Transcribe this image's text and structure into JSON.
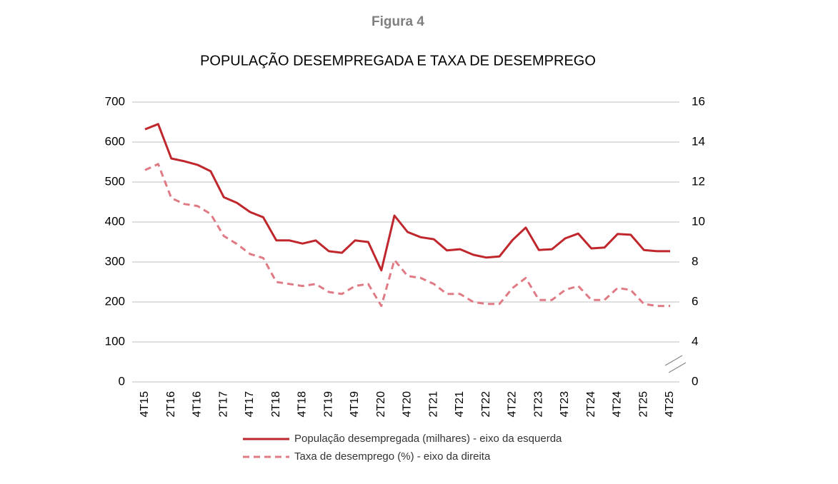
{
  "chart_data": {
    "type": "line",
    "supertitle": "Figura 4",
    "title": "POPULAÇÃO DESEMPREGADA E TAXA DE DESEMPREGO",
    "categories": [
      "4T15",
      null,
      "2T16",
      null,
      "4T16",
      null,
      "2T17",
      null,
      "4T17",
      null,
      "2T18",
      null,
      "4T18",
      null,
      "2T19",
      null,
      "4T19",
      null,
      "2T20",
      null,
      "4T20",
      null,
      "2T21",
      null,
      "4T21",
      null,
      "2T22",
      null,
      "4T22",
      null,
      "2T23",
      null,
      "4T23",
      null,
      "2T24",
      null,
      "4T24",
      null,
      "2T25",
      null,
      "4T25"
    ],
    "series": [
      {
        "name": "População desempregada (milhares) - eixo da esquerda",
        "color": "#c0272d",
        "dash": false,
        "values": [
          632,
          645,
          559,
          552,
          543,
          527,
          462,
          448,
          425,
          412,
          354,
          354,
          346,
          354,
          327,
          323,
          354,
          350,
          279,
          416,
          375,
          362,
          357,
          329,
          332,
          318,
          311,
          314,
          355,
          386,
          330,
          332,
          359,
          371,
          334,
          336,
          370,
          368,
          330,
          327,
          327
        ]
      },
      {
        "name": "Taxa de desemprego (%) - eixo da direita",
        "color": "#e07b85",
        "dash": true,
        "axis": "y2",
        "values": [
          12.6,
          12.9,
          11.2,
          10.9,
          10.8,
          10.4,
          9.3,
          8.9,
          8.4,
          8.2,
          7.0,
          6.9,
          6.8,
          6.9,
          6.5,
          6.4,
          6.8,
          6.9,
          5.8,
          8.1,
          7.3,
          7.2,
          6.9,
          6.4,
          6.4,
          6.0,
          5.9,
          5.9,
          6.7,
          7.2,
          6.1,
          6.1,
          6.6,
          6.8,
          6.1,
          6.1,
          6.7,
          6.6,
          5.9,
          5.8,
          5.8
        ]
      }
    ],
    "ylim": [
      0,
      700
    ],
    "yticks": [
      0,
      100,
      200,
      300,
      400,
      500,
      600,
      700
    ],
    "y2lim": [
      0,
      16
    ],
    "y2ticks": [
      0,
      4,
      6,
      8,
      10,
      12,
      14,
      16
    ],
    "y2_break": [
      0,
      4
    ],
    "grid": true,
    "legend": "bottom"
  }
}
